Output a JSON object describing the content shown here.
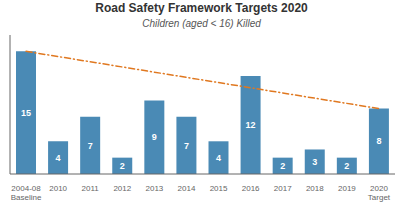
{
  "chart_data": {
    "type": "bar",
    "title": "Road Safety Framework Targets 2020",
    "subtitle": "Children (aged < 16) Killed",
    "categories": [
      "2004-08\nBaseline",
      "2010",
      "2011",
      "2012",
      "2013",
      "2014",
      "2015",
      "2016",
      "2017",
      "2018",
      "2019",
      "2020\nTarget"
    ],
    "series": [
      {
        "type": "bar",
        "color": "#4a8ab5",
        "values": [
          15,
          4,
          7,
          2,
          9,
          7,
          4,
          12,
          2,
          3,
          2,
          8
        ]
      },
      {
        "type": "line",
        "color": "#e07820",
        "line_style": "dashdot",
        "values": [
          15,
          null,
          null,
          null,
          null,
          null,
          null,
          null,
          null,
          null,
          null,
          8
        ]
      }
    ],
    "ylim": [
      0,
      17
    ],
    "grid": false,
    "data_labels": true,
    "tick_labels": "x"
  }
}
